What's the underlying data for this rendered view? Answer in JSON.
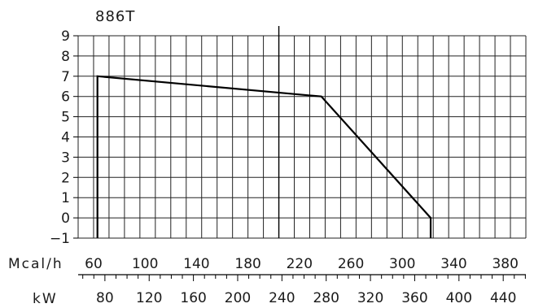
{
  "chart_data": {
    "type": "area",
    "title": "886T",
    "y_ticks": [
      -1,
      0,
      1,
      2,
      3,
      4,
      5,
      6,
      7,
      8,
      9
    ],
    "y_range": [
      -1,
      9
    ],
    "x_primary": {
      "unit": "Mcal/h",
      "ticks": [
        60,
        100,
        140,
        180,
        220,
        260,
        300,
        340,
        380
      ],
      "range": [
        48,
        396
      ]
    },
    "x_secondary": {
      "unit": "kW",
      "ticks": [
        80,
        120,
        160,
        200,
        240,
        280,
        320,
        360,
        400,
        440
      ]
    },
    "grid": true,
    "series": [
      {
        "color": "#000000",
        "points": [
          {
            "x": 63,
            "y": -1
          },
          {
            "x": 63,
            "y": 7
          },
          {
            "x": 237,
            "y": 6
          },
          {
            "x": 322,
            "y": 0
          },
          {
            "x": 322,
            "y": -1
          }
        ]
      }
    ]
  }
}
